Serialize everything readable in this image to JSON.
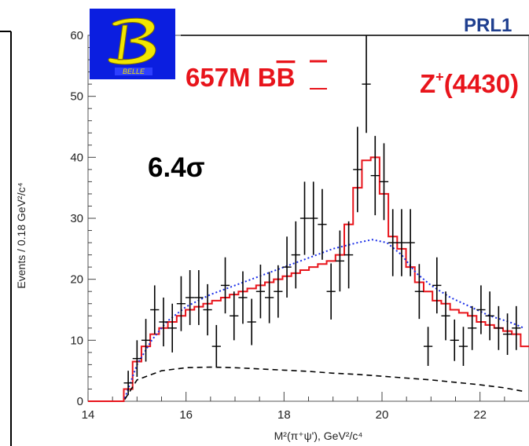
{
  "header": {
    "ref_text": "PRL1"
  },
  "logo": {
    "label": "BELLE",
    "colors": {
      "bg": "#0b1ee0",
      "b_fill": "#f2e600"
    }
  },
  "annotations": {
    "luminosity": "657M B",
    "luminosity_bar": "B",
    "state": "Z",
    "state_sup": "+",
    "state_mass": "(4430)",
    "significance": "6.4σ"
  },
  "colors": {
    "data": "#000000",
    "fit_total": "#e8141b",
    "fit_bkg": "#1a2ee8",
    "fit_other": "#000000",
    "frame": "#555555"
  },
  "chart_data": {
    "type": "line",
    "xlabel": "M²(π⁺ψ'), GeV²/c⁴",
    "ylabel": "Events / 0.18 GeV²/c⁴",
    "xlim": [
      14,
      23
    ],
    "ylim": [
      0,
      60
    ],
    "x_ticks": [
      14,
      16,
      18,
      20,
      22
    ],
    "y_ticks": [
      0,
      10,
      20,
      30,
      40,
      50,
      60
    ],
    "bin_width": 0.18,
    "series": [
      {
        "kind": "data-points",
        "x": [
          14.82,
          15.0,
          15.18,
          15.36,
          15.54,
          15.72,
          15.9,
          16.08,
          16.26,
          16.44,
          16.62,
          16.8,
          16.98,
          17.16,
          17.34,
          17.52,
          17.7,
          17.88,
          18.06,
          18.24,
          18.42,
          18.6,
          18.78,
          18.96,
          19.14,
          19.32,
          19.5,
          19.68,
          19.86,
          20.04,
          20.22,
          20.4,
          20.58,
          20.76,
          20.94,
          21.12,
          21.3,
          21.48,
          21.66,
          21.84,
          22.02,
          22.2,
          22.38,
          22.56,
          22.74
        ],
        "y": [
          3,
          7,
          10,
          15,
          13,
          12,
          16,
          17,
          17,
          15,
          9,
          19,
          14,
          17,
          13,
          18,
          17,
          18,
          22,
          24,
          30,
          30,
          29,
          18,
          23,
          24,
          38,
          52,
          37,
          36,
          26,
          26,
          26,
          18,
          9,
          19,
          14,
          10,
          9,
          12,
          15,
          14,
          12,
          11,
          12
        ],
        "err": [
          2,
          3,
          3.5,
          4,
          4,
          4,
          4.5,
          4.5,
          4.5,
          4.2,
          3.5,
          4.6,
          4,
          4.3,
          3.8,
          4.4,
          4.2,
          4.3,
          5,
          5.5,
          6,
          6,
          5.8,
          4.6,
          5,
          5.5,
          7,
          8,
          6.5,
          6.3,
          5.5,
          5.5,
          5.5,
          4.5,
          3.2,
          4.6,
          4,
          3.4,
          3.2,
          3.6,
          4,
          4,
          3.6,
          3.4,
          3.6
        ]
      },
      {
        "kind": "step",
        "style": "solid-red",
        "x_edges": [
          14.0,
          14.73,
          14.91,
          15.09,
          15.27,
          15.45,
          15.63,
          15.81,
          15.99,
          16.17,
          16.35,
          16.53,
          16.71,
          16.89,
          17.07,
          17.25,
          17.43,
          17.61,
          17.79,
          17.97,
          18.15,
          18.33,
          18.51,
          18.69,
          18.87,
          19.05,
          19.23,
          19.41,
          19.59,
          19.77,
          19.95,
          20.13,
          20.31,
          20.49,
          20.67,
          20.85,
          21.03,
          21.21,
          21.39,
          21.57,
          21.75,
          21.93,
          22.11,
          22.29,
          22.47,
          22.65,
          22.83,
          23.0
        ],
        "y": [
          0,
          2,
          6.5,
          9,
          11,
          12,
          13,
          14,
          15,
          15.5,
          16,
          16.5,
          17,
          17.5,
          18,
          18.5,
          19,
          19.5,
          20,
          20.5,
          21,
          21.5,
          22,
          22.5,
          23,
          24,
          29,
          35,
          39.5,
          40,
          34,
          27,
          25,
          22,
          19.5,
          18,
          16.5,
          16,
          15,
          14.5,
          14,
          13,
          12.5,
          12,
          11.5,
          11,
          9
        ]
      },
      {
        "kind": "curve",
        "style": "dotted-blue",
        "x": [
          14.75,
          15.0,
          15.3,
          15.6,
          16.0,
          16.5,
          17.0,
          17.5,
          18.0,
          18.5,
          19.0,
          19.5,
          19.8,
          20.1,
          20.4,
          20.7,
          21.0,
          21.4,
          21.8,
          22.2,
          22.6,
          22.9
        ],
        "y": [
          0.5,
          6,
          10,
          13,
          15.5,
          17.5,
          19,
          20.5,
          22,
          23.5,
          25,
          26,
          26.5,
          26,
          24,
          21,
          19,
          17,
          15.5,
          14,
          13,
          12
        ]
      },
      {
        "kind": "curve",
        "style": "dashed-black",
        "x": [
          14.75,
          15.0,
          15.5,
          16.0,
          16.5,
          17.0,
          17.5,
          18.0,
          18.5,
          19.0,
          19.5,
          20.0,
          20.5,
          21.0,
          21.5,
          22.0,
          22.5,
          22.9
        ],
        "y": [
          0.3,
          3.5,
          5,
          5.5,
          5.6,
          5.5,
          5.3,
          5.1,
          4.9,
          4.6,
          4.4,
          4.1,
          3.8,
          3.5,
          3.1,
          2.7,
          2.2,
          1.6
        ]
      }
    ]
  }
}
